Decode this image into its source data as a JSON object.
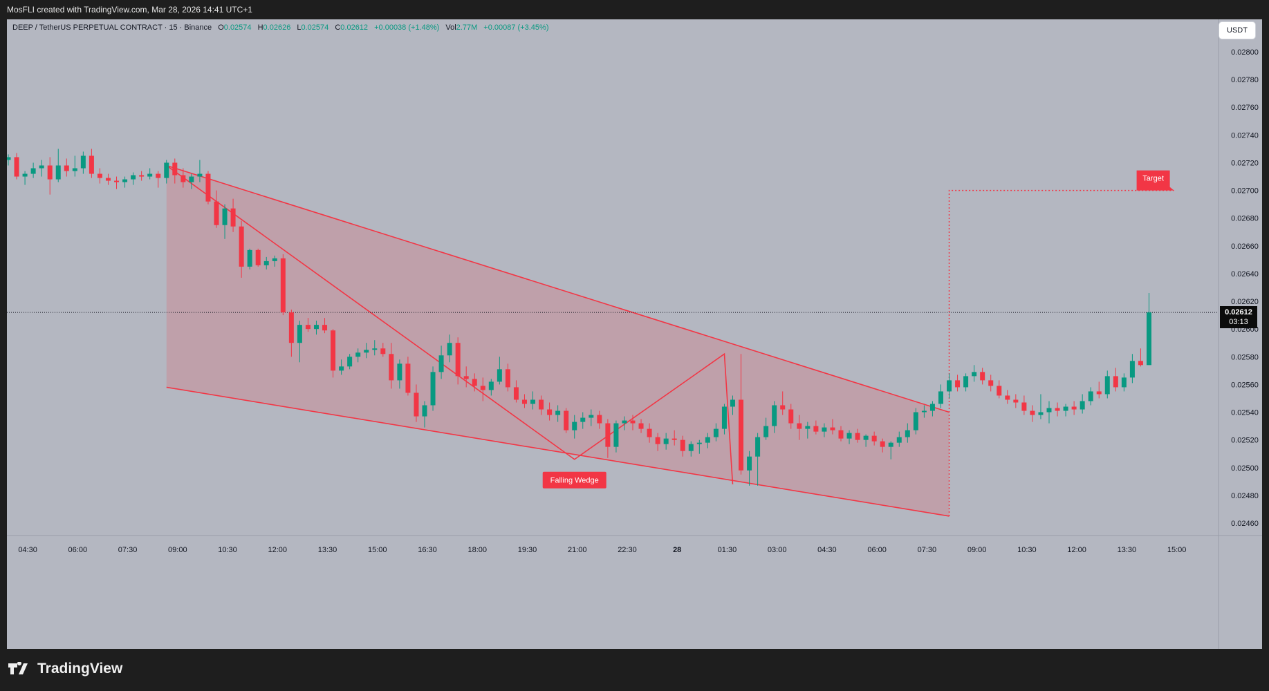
{
  "header": {
    "attribution": "MosFLI created with TradingView.com, Mar 28, 2026 14:41 UTC+1"
  },
  "legend": {
    "symbol": "DEEP / TetherUS PERPETUAL CONTRACT · 15 · Binance",
    "o_label": "O",
    "o": "0.02574",
    "h_label": "H",
    "h": "0.02626",
    "l_label": "L",
    "l": "0.02574",
    "c_label": "C",
    "c": "0.02612",
    "change": "+0.00038 (+1.48%)",
    "vol_label": "Vol",
    "vol": "2.77M",
    "vol_change": "+0.00087 (+3.45%)"
  },
  "currency_button": "USDT",
  "last_price": {
    "price": "0.02612",
    "countdown": "03:13"
  },
  "footer": {
    "logo_text": "TradingView"
  },
  "colors": {
    "up": "#089981",
    "down": "#f23645",
    "background": "#b4b7c1",
    "pattern": "#f23645"
  },
  "chart_data": {
    "type": "candlestick",
    "interval": "15",
    "ylim": [
      0.0245,
      0.0282
    ],
    "y_ticks": [
      "0.02460",
      "0.02480",
      "0.02500",
      "0.02520",
      "0.02540",
      "0.02560",
      "0.02580",
      "0.02600",
      "0.02620",
      "0.02640",
      "0.02660",
      "0.02680",
      "0.02700",
      "0.02720",
      "0.02740",
      "0.02760",
      "0.02780",
      "0.02800"
    ],
    "x_ticks": [
      {
        "label": "04:30",
        "i": 2
      },
      {
        "label": "06:00",
        "i": 8
      },
      {
        "label": "07:30",
        "i": 14
      },
      {
        "label": "09:00",
        "i": 20
      },
      {
        "label": "10:30",
        "i": 26
      },
      {
        "label": "12:00",
        "i": 32
      },
      {
        "label": "13:30",
        "i": 38
      },
      {
        "label": "15:00",
        "i": 44
      },
      {
        "label": "16:30",
        "i": 50
      },
      {
        "label": "18:00",
        "i": 56
      },
      {
        "label": "19:30",
        "i": 62
      },
      {
        "label": "21:00",
        "i": 68
      },
      {
        "label": "22:30",
        "i": 74
      },
      {
        "label": "28",
        "i": 80,
        "bold": true
      },
      {
        "label": "01:30",
        "i": 86
      },
      {
        "label": "03:00",
        "i": 92
      },
      {
        "label": "04:30",
        "i": 98
      },
      {
        "label": "06:00",
        "i": 104
      },
      {
        "label": "07:30",
        "i": 110
      },
      {
        "label": "09:00",
        "i": 116
      },
      {
        "label": "10:30",
        "i": 122
      },
      {
        "label": "12:00",
        "i": 128
      },
      {
        "label": "13:30",
        "i": 134
      },
      {
        "label": "15:00",
        "i": 140
      }
    ],
    "candles": [
      [
        0.02722,
        0.02726,
        0.02718,
        0.02724
      ],
      [
        0.02724,
        0.02727,
        0.02708,
        0.0271
      ],
      [
        0.0271,
        0.02714,
        0.02704,
        0.02712
      ],
      [
        0.02712,
        0.0272,
        0.02709,
        0.02716
      ],
      [
        0.02716,
        0.02722,
        0.0271,
        0.02718
      ],
      [
        0.02718,
        0.02724,
        0.02697,
        0.02708
      ],
      [
        0.02708,
        0.0273,
        0.02706,
        0.02718
      ],
      [
        0.02718,
        0.02723,
        0.0271,
        0.02714
      ],
      [
        0.02714,
        0.02725,
        0.0271,
        0.02716
      ],
      [
        0.02716,
        0.02728,
        0.02712,
        0.02725
      ],
      [
        0.02725,
        0.0273,
        0.02709,
        0.02712
      ],
      [
        0.02712,
        0.02716,
        0.02705,
        0.02709
      ],
      [
        0.02709,
        0.02712,
        0.02704,
        0.02707
      ],
      [
        0.02707,
        0.0271,
        0.02701,
        0.02706
      ],
      [
        0.02706,
        0.0271,
        0.02702,
        0.02708
      ],
      [
        0.02708,
        0.02713,
        0.02704,
        0.02711
      ],
      [
        0.02711,
        0.02714,
        0.02707,
        0.0271
      ],
      [
        0.0271,
        0.02716,
        0.02708,
        0.02712
      ],
      [
        0.02712,
        0.02714,
        0.02702,
        0.02709
      ],
      [
        0.02709,
        0.02722,
        0.02705,
        0.0272
      ],
      [
        0.0272,
        0.02723,
        0.02705,
        0.02711
      ],
      [
        0.02711,
        0.02716,
        0.02702,
        0.02706
      ],
      [
        0.02706,
        0.02712,
        0.02701,
        0.0271
      ],
      [
        0.0271,
        0.02722,
        0.02706,
        0.02712
      ],
      [
        0.02712,
        0.02714,
        0.0269,
        0.02692
      ],
      [
        0.02692,
        0.027,
        0.02673,
        0.02675
      ],
      [
        0.02675,
        0.0269,
        0.02665,
        0.02687
      ],
      [
        0.02687,
        0.02694,
        0.0267,
        0.02674
      ],
      [
        0.02674,
        0.02678,
        0.02637,
        0.02645
      ],
      [
        0.02645,
        0.02658,
        0.02643,
        0.02657
      ],
      [
        0.02657,
        0.02658,
        0.02645,
        0.02646
      ],
      [
        0.02646,
        0.02652,
        0.02643,
        0.02649
      ],
      [
        0.02649,
        0.02653,
        0.02645,
        0.02651
      ],
      [
        0.02651,
        0.02654,
        0.0261,
        0.02612
      ],
      [
        0.02612,
        0.02614,
        0.0258,
        0.0259
      ],
      [
        0.0259,
        0.02606,
        0.02576,
        0.02603
      ],
      [
        0.02603,
        0.02608,
        0.02598,
        0.026
      ],
      [
        0.026,
        0.02606,
        0.02596,
        0.02603
      ],
      [
        0.02603,
        0.02608,
        0.02597,
        0.02599
      ],
      [
        0.02599,
        0.026,
        0.02565,
        0.0257
      ],
      [
        0.0257,
        0.02578,
        0.02567,
        0.02573
      ],
      [
        0.02573,
        0.02582,
        0.02571,
        0.0258
      ],
      [
        0.0258,
        0.02586,
        0.02576,
        0.02583
      ],
      [
        0.02583,
        0.0259,
        0.02579,
        0.02585
      ],
      [
        0.02585,
        0.02592,
        0.02581,
        0.02586
      ],
      [
        0.02586,
        0.0259,
        0.0258,
        0.02582
      ],
      [
        0.02582,
        0.0259,
        0.02557,
        0.02563
      ],
      [
        0.02563,
        0.02578,
        0.02557,
        0.02575
      ],
      [
        0.02575,
        0.0258,
        0.02552,
        0.02554
      ],
      [
        0.02554,
        0.0256,
        0.02533,
        0.02537
      ],
      [
        0.02537,
        0.02548,
        0.02529,
        0.02545
      ],
      [
        0.02545,
        0.02573,
        0.02541,
        0.02569
      ],
      [
        0.02569,
        0.02588,
        0.02564,
        0.02581
      ],
      [
        0.02581,
        0.02596,
        0.02576,
        0.0259
      ],
      [
        0.0259,
        0.02594,
        0.0256,
        0.02566
      ],
      [
        0.02566,
        0.02573,
        0.02558,
        0.02564
      ],
      [
        0.02564,
        0.02568,
        0.02555,
        0.02559
      ],
      [
        0.02559,
        0.02565,
        0.02548,
        0.02556
      ],
      [
        0.02556,
        0.02564,
        0.02552,
        0.02562
      ],
      [
        0.02562,
        0.0258,
        0.0256,
        0.02571
      ],
      [
        0.02571,
        0.02575,
        0.02555,
        0.02558
      ],
      [
        0.02558,
        0.02563,
        0.02547,
        0.02549
      ],
      [
        0.02549,
        0.02553,
        0.02543,
        0.02546
      ],
      [
        0.02546,
        0.02555,
        0.02542,
        0.02549
      ],
      [
        0.02549,
        0.02552,
        0.02538,
        0.02542
      ],
      [
        0.02542,
        0.02547,
        0.02534,
        0.02538
      ],
      [
        0.02538,
        0.02545,
        0.02533,
        0.02541
      ],
      [
        0.02541,
        0.02543,
        0.02525,
        0.02527
      ],
      [
        0.02527,
        0.02538,
        0.02521,
        0.02533
      ],
      [
        0.02533,
        0.0254,
        0.02528,
        0.02536
      ],
      [
        0.02536,
        0.02542,
        0.0253,
        0.02538
      ],
      [
        0.02538,
        0.02541,
        0.02528,
        0.02532
      ],
      [
        0.02532,
        0.02535,
        0.02507,
        0.02515
      ],
      [
        0.02515,
        0.02534,
        0.02511,
        0.02532
      ],
      [
        0.02532,
        0.02537,
        0.02527,
        0.02534
      ],
      [
        0.02534,
        0.02538,
        0.02527,
        0.02532
      ],
      [
        0.02532,
        0.02535,
        0.02525,
        0.02528
      ],
      [
        0.02528,
        0.02532,
        0.02518,
        0.02522
      ],
      [
        0.02522,
        0.02525,
        0.02512,
        0.02517
      ],
      [
        0.02517,
        0.02525,
        0.02513,
        0.02521
      ],
      [
        0.02521,
        0.02527,
        0.02516,
        0.0252
      ],
      [
        0.0252,
        0.02523,
        0.02508,
        0.02512
      ],
      [
        0.02512,
        0.02519,
        0.02508,
        0.02517
      ],
      [
        0.02517,
        0.0252,
        0.0251,
        0.02518
      ],
      [
        0.02518,
        0.02525,
        0.02514,
        0.02522
      ],
      [
        0.02522,
        0.02532,
        0.02519,
        0.02528
      ],
      [
        0.02528,
        0.02546,
        0.02524,
        0.02544
      ],
      [
        0.02544,
        0.02552,
        0.02538,
        0.02549
      ],
      [
        0.02549,
        0.02582,
        0.02495,
        0.02498
      ],
      [
        0.02498,
        0.02512,
        0.02487,
        0.02508
      ],
      [
        0.02508,
        0.02525,
        0.02487,
        0.02522
      ],
      [
        0.02522,
        0.02536,
        0.0252,
        0.0253
      ],
      [
        0.0253,
        0.02548,
        0.02525,
        0.02545
      ],
      [
        0.02545,
        0.02555,
        0.02538,
        0.02542
      ],
      [
        0.02542,
        0.02546,
        0.02528,
        0.02532
      ],
      [
        0.02532,
        0.02538,
        0.0252,
        0.02528
      ],
      [
        0.02528,
        0.02533,
        0.02521,
        0.0253
      ],
      [
        0.0253,
        0.02534,
        0.02524,
        0.02526
      ],
      [
        0.02526,
        0.02532,
        0.02522,
        0.02529
      ],
      [
        0.02529,
        0.02535,
        0.02524,
        0.02527
      ],
      [
        0.02527,
        0.0253,
        0.02519,
        0.02521
      ],
      [
        0.02521,
        0.02527,
        0.02517,
        0.02525
      ],
      [
        0.02525,
        0.02528,
        0.02518,
        0.0252
      ],
      [
        0.0252,
        0.02524,
        0.02515,
        0.02523
      ],
      [
        0.02523,
        0.02526,
        0.02516,
        0.02519
      ],
      [
        0.02519,
        0.02521,
        0.02511,
        0.02515
      ],
      [
        0.02515,
        0.02519,
        0.02506,
        0.02518
      ],
      [
        0.02518,
        0.02526,
        0.02515,
        0.02522
      ],
      [
        0.02522,
        0.02532,
        0.02518,
        0.02527
      ],
      [
        0.02527,
        0.02543,
        0.02524,
        0.0254
      ],
      [
        0.0254,
        0.02545,
        0.02536,
        0.02541
      ],
      [
        0.02541,
        0.02548,
        0.02537,
        0.02546
      ],
      [
        0.02546,
        0.0256,
        0.02543,
        0.02555
      ],
      [
        0.02555,
        0.02568,
        0.0255,
        0.02563
      ],
      [
        0.02563,
        0.02567,
        0.02555,
        0.02558
      ],
      [
        0.02558,
        0.02568,
        0.02555,
        0.02566
      ],
      [
        0.02566,
        0.02574,
        0.02562,
        0.02569
      ],
      [
        0.02569,
        0.02572,
        0.0256,
        0.02563
      ],
      [
        0.02563,
        0.02567,
        0.02555,
        0.02559
      ],
      [
        0.02559,
        0.02563,
        0.0255,
        0.02552
      ],
      [
        0.02552,
        0.02556,
        0.02546,
        0.02549
      ],
      [
        0.02549,
        0.02553,
        0.02543,
        0.02547
      ],
      [
        0.02547,
        0.02552,
        0.02538,
        0.02541
      ],
      [
        0.02541,
        0.02545,
        0.02533,
        0.02538
      ],
      [
        0.02538,
        0.02553,
        0.02535,
        0.0254
      ],
      [
        0.0254,
        0.02548,
        0.02532,
        0.02543
      ],
      [
        0.02543,
        0.02547,
        0.02537,
        0.02541
      ],
      [
        0.02541,
        0.02546,
        0.02537,
        0.02544
      ],
      [
        0.02544,
        0.02548,
        0.02538,
        0.02542
      ],
      [
        0.02542,
        0.02553,
        0.02539,
        0.02548
      ],
      [
        0.02548,
        0.02558,
        0.02545,
        0.02555
      ],
      [
        0.02555,
        0.02562,
        0.0255,
        0.02553
      ],
      [
        0.02553,
        0.0257,
        0.0255,
        0.02566
      ],
      [
        0.02566,
        0.02572,
        0.02555,
        0.02558
      ],
      [
        0.02558,
        0.02568,
        0.02555,
        0.02565
      ],
      [
        0.02565,
        0.02582,
        0.02561,
        0.02577
      ],
      [
        0.02577,
        0.02586,
        0.02573,
        0.02574
      ],
      [
        0.02574,
        0.02626,
        0.02574,
        0.02612
      ]
    ],
    "annotations": {
      "pattern_label": "Falling Wedge",
      "target_label": "Target",
      "target_price": 0.027,
      "wedge_upper": [
        [
          19,
          0.02718
        ],
        [
          113,
          0.0254
        ]
      ],
      "wedge_lower": [
        [
          19,
          0.02558
        ],
        [
          113,
          0.02465
        ]
      ],
      "zigzag": [
        [
          19,
          0.02718
        ],
        [
          68,
          0.02506
        ],
        [
          86,
          0.02582
        ],
        [
          87,
          0.02488
        ]
      ],
      "target_line_start_index": 113,
      "target_line_end_index": 140
    }
  }
}
